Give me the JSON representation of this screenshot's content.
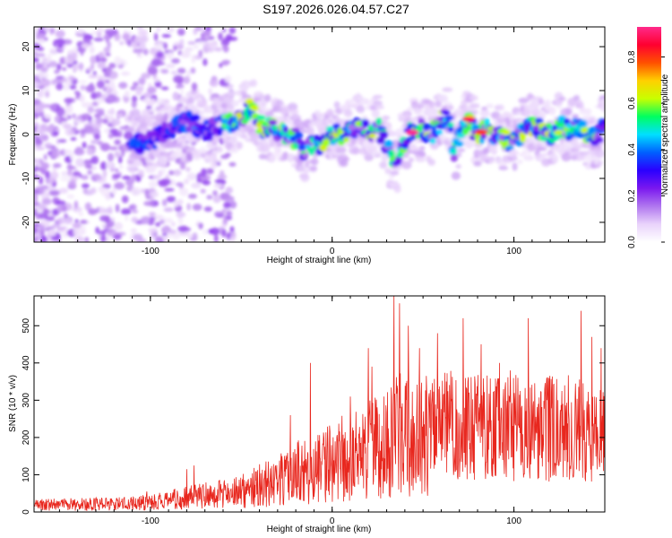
{
  "title": "S197.2026.026.04.57.C27",
  "chart_data": [
    {
      "type": "heatmap",
      "xlabel": "Height of straight line (km)",
      "ylabel": "Frequency (Hz)",
      "xlim": [
        -164,
        150
      ],
      "ylim": [
        -24.5,
        24.5
      ],
      "xticks": [
        -100,
        0,
        100
      ],
      "yticks": [
        -20,
        -10,
        0,
        10,
        20
      ],
      "colorbar": {
        "label": "Normalized spectral amplitude",
        "range": [
          0.0,
          0.93
        ],
        "ticks": [
          "0.0",
          "0.2",
          "0.4",
          "0.6",
          "0.8"
        ],
        "tick_values": [
          0.0,
          0.2,
          0.4,
          0.6,
          0.8
        ],
        "colors": [
          "#ffffff",
          "#e9d3fb",
          "#b076ef",
          "#7a18ef",
          "#2a00ff",
          "#0060ff",
          "#00e0ff",
          "#00ff60",
          "#c8ff00",
          "#ffd000",
          "#ff5000",
          "#ff0030",
          "#ff2a8a"
        ]
      },
      "ridge_hz": [
        [
          -110,
          -2
        ],
        [
          -100,
          -1.5
        ],
        [
          -90,
          1
        ],
        [
          -80,
          3
        ],
        [
          -70,
          1
        ],
        [
          -60,
          2
        ],
        [
          -50,
          4
        ],
        [
          -45,
          6
        ],
        [
          -40,
          2
        ],
        [
          -30,
          1
        ],
        [
          -20,
          -1
        ],
        [
          -15,
          -4
        ],
        [
          -10,
          -2
        ],
        [
          -5,
          -2
        ],
        [
          0,
          0
        ],
        [
          5,
          0
        ],
        [
          10,
          1
        ],
        [
          15,
          2
        ],
        [
          20,
          0
        ],
        [
          25,
          2
        ],
        [
          30,
          -3
        ],
        [
          35,
          -8
        ],
        [
          38,
          -3
        ],
        [
          42,
          0
        ],
        [
          45,
          1
        ],
        [
          50,
          1
        ],
        [
          55,
          0
        ],
        [
          60,
          3
        ],
        [
          64,
          4
        ],
        [
          67,
          -4
        ],
        [
          70,
          0
        ],
        [
          75,
          3
        ],
        [
          80,
          0
        ],
        [
          85,
          1
        ],
        [
          90,
          0
        ],
        [
          95,
          -1
        ],
        [
          100,
          -2
        ],
        [
          105,
          1
        ],
        [
          110,
          2
        ],
        [
          115,
          1
        ],
        [
          120,
          0
        ],
        [
          125,
          2
        ],
        [
          130,
          1
        ],
        [
          135,
          2
        ],
        [
          140,
          0
        ],
        [
          145,
          -1
        ],
        [
          150,
          2
        ]
      ],
      "hotspots": [
        {
          "x": 44,
          "y": 0.5,
          "value": 0.93
        },
        {
          "x": 75,
          "y": 3.5,
          "value": 0.88
        },
        {
          "x": 82,
          "y": 0.5,
          "value": 0.8
        }
      ]
    },
    {
      "type": "line",
      "xlabel": "Height of straight line (km)",
      "ylabel": "SNR (10 * v/v)",
      "xlim": [
        -164,
        150
      ],
      "ylim": [
        0,
        580
      ],
      "xticks": [
        -100,
        0,
        100
      ],
      "yticks": [
        0,
        100,
        200,
        300,
        400,
        500
      ],
      "color": "#e8271e",
      "baseline_envelope": [
        [
          -164,
          22
        ],
        [
          -120,
          25
        ],
        [
          -100,
          30
        ],
        [
          -80,
          45
        ],
        [
          -60,
          55
        ],
        [
          -50,
          65
        ],
        [
          -40,
          80
        ],
        [
          -30,
          100
        ],
        [
          -20,
          120
        ],
        [
          -10,
          135
        ],
        [
          0,
          150
        ],
        [
          10,
          180
        ],
        [
          20,
          200
        ],
        [
          30,
          220
        ],
        [
          40,
          240
        ],
        [
          50,
          240
        ],
        [
          60,
          245
        ],
        [
          70,
          230
        ],
        [
          80,
          235
        ],
        [
          90,
          230
        ],
        [
          100,
          230
        ],
        [
          110,
          230
        ],
        [
          120,
          230
        ],
        [
          130,
          230
        ],
        [
          140,
          220
        ],
        [
          150,
          200
        ]
      ],
      "spikes": [
        [
          -102,
          55
        ],
        [
          -80,
          115
        ],
        [
          -76,
          125
        ],
        [
          -23,
          260
        ],
        [
          -12,
          400
        ],
        [
          10,
          310
        ],
        [
          20,
          440
        ],
        [
          22,
          390
        ],
        [
          34,
          580
        ],
        [
          37,
          560
        ],
        [
          42,
          500
        ],
        [
          48,
          440
        ],
        [
          58,
          480
        ],
        [
          72,
          520
        ],
        [
          82,
          450
        ],
        [
          92,
          400
        ],
        [
          98,
          380
        ],
        [
          108,
          520
        ],
        [
          118,
          360
        ],
        [
          128,
          340
        ],
        [
          137,
          540
        ],
        [
          143,
          470
        ],
        [
          148,
          440
        ]
      ]
    }
  ]
}
